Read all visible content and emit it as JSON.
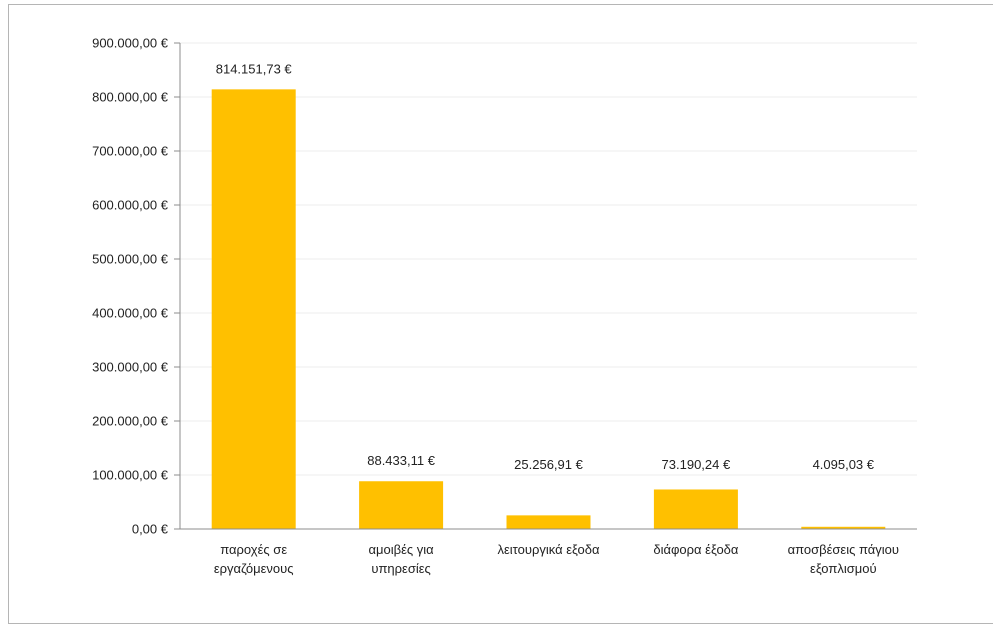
{
  "chart_data": {
    "type": "bar",
    "categories": [
      [
        "παροχές σε",
        "εργαζόμενους"
      ],
      [
        "αμοιβές για",
        "υπηρεσίες"
      ],
      [
        "λειτουργικά εξοδα"
      ],
      [
        "διάφορα έξοδα"
      ],
      [
        "αποσβέσεις πάγιου",
        "εξοπλισμού"
      ]
    ],
    "values": [
      814151.73,
      88433.11,
      25256.91,
      73190.24,
      4095.03
    ],
    "data_labels": [
      "814.151,73 €",
      "88.433,11 €",
      "25.256,91 €",
      "73.190,24 €",
      "4.095,03 €"
    ],
    "ylim": [
      0,
      900000
    ],
    "yticks": [
      0,
      100000,
      200000,
      300000,
      400000,
      500000,
      600000,
      700000,
      800000,
      900000
    ],
    "ytick_labels": [
      "0,00 €",
      "100.000,00 €",
      "200.000,00 €",
      "300.000,00 €",
      "400.000,00 €",
      "500.000,00 €",
      "600.000,00 €",
      "700.000,00 €",
      "800.000,00 €",
      "900.000,00 €"
    ],
    "title": "",
    "xlabel": "",
    "ylabel": "",
    "grid": true,
    "legend": "none",
    "colors": {
      "bar": "#FFC000",
      "grid": "#ededed",
      "axis": "#8c8c8c",
      "text": "#222222"
    }
  }
}
